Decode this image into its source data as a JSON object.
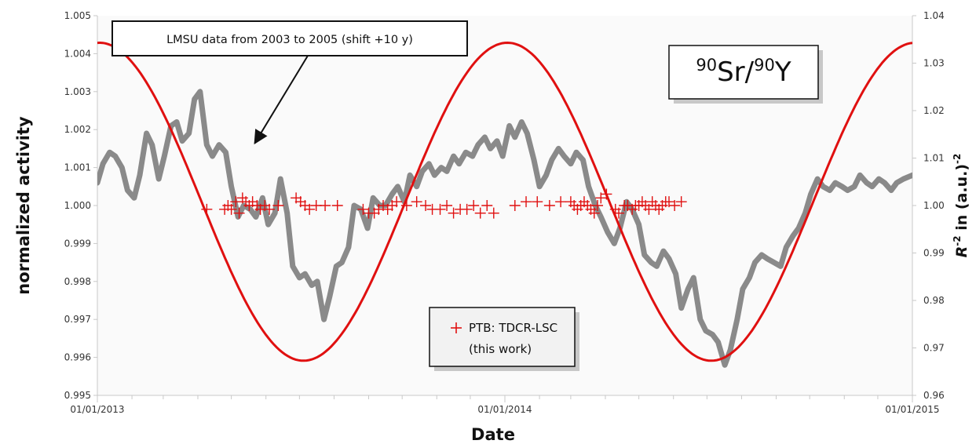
{
  "chart_data": {
    "type": "line",
    "x_axis": {
      "label": "Date",
      "range": [
        "2013-01-01",
        "2015-01-01"
      ],
      "tick_labels": [
        "01/01/2013",
        "01/01/2014",
        "01/01/2015"
      ],
      "minor_ticks": "monthly"
    },
    "y_left": {
      "label": "normalized activity",
      "range": [
        0.995,
        1.005
      ],
      "tick_labels": [
        "1.005",
        "1.004",
        "1.003",
        "1.002",
        "1.001",
        "1.000",
        "0.999",
        "0.998",
        "0.997",
        "0.996",
        "0.995"
      ]
    },
    "y_right": {
      "label_parts": [
        "R",
        "-2",
        " in (a.u.)",
        "-2"
      ],
      "range": [
        0.96,
        1.04
      ],
      "tick_labels": [
        "1.04",
        "1.03",
        "1.02",
        "1.01",
        "1.00",
        "0.99",
        "0.98",
        "0.97",
        "0.96"
      ]
    },
    "grid": false,
    "background": "#fafafa",
    "series": [
      {
        "name": "LMSU data from 2003 to 2005 (shift +10 y)",
        "kind": "line",
        "color": "#8a8a8a",
        "axis": "left",
        "x": [
          "2013-01-01",
          "2013-01-06",
          "2013-01-12",
          "2013-01-17",
          "2013-01-23",
          "2013-01-28",
          "2013-02-03",
          "2013-02-08",
          "2013-02-14",
          "2013-02-19",
          "2013-02-25",
          "2013-03-02",
          "2013-03-08",
          "2013-03-13",
          "2013-03-18",
          "2013-03-24",
          "2013-03-29",
          "2013-04-03",
          "2013-04-09",
          "2013-04-14",
          "2013-04-20",
          "2013-04-26",
          "2013-05-01",
          "2013-05-07",
          "2013-05-12",
          "2013-05-18",
          "2013-05-23",
          "2013-05-29",
          "2013-06-03",
          "2013-06-09",
          "2013-06-14",
          "2013-06-20",
          "2013-06-25",
          "2013-07-01",
          "2013-07-06",
          "2013-07-12",
          "2013-07-17",
          "2013-07-23",
          "2013-07-28",
          "2013-08-03",
          "2013-08-08",
          "2013-08-14",
          "2013-08-19",
          "2013-08-25",
          "2013-08-31",
          "2013-09-05",
          "2013-09-11",
          "2013-09-16",
          "2013-09-22",
          "2013-09-27",
          "2013-10-03",
          "2013-10-08",
          "2013-10-14",
          "2013-10-19",
          "2013-10-25",
          "2013-10-30",
          "2013-11-05",
          "2013-11-10",
          "2013-11-16",
          "2013-11-21",
          "2013-11-27",
          "2013-12-03",
          "2013-12-08",
          "2013-12-14",
          "2013-12-19",
          "2013-12-25",
          "2013-12-30",
          "2014-01-05",
          "2014-01-10",
          "2014-01-16",
          "2014-01-21",
          "2014-01-27",
          "2014-02-01",
          "2014-02-07",
          "2014-02-12",
          "2014-02-18",
          "2014-02-23",
          "2014-03-01",
          "2014-03-06",
          "2014-03-12",
          "2014-03-17",
          "2014-03-23",
          "2014-03-28",
          "2014-04-03",
          "2014-04-09",
          "2014-04-14",
          "2014-04-20",
          "2014-04-25",
          "2014-05-01",
          "2014-05-06",
          "2014-05-12",
          "2014-05-17",
          "2014-05-23",
          "2014-05-28",
          "2014-06-03",
          "2014-06-08",
          "2014-06-14",
          "2014-06-19",
          "2014-06-25",
          "2014-06-30",
          "2014-07-06",
          "2014-07-11",
          "2014-07-17",
          "2014-07-22",
          "2014-07-28",
          "2014-08-02",
          "2014-08-08",
          "2014-08-13",
          "2014-08-19",
          "2014-08-24",
          "2014-08-30",
          "2014-09-05",
          "2014-09-10",
          "2014-09-16",
          "2014-09-21",
          "2014-09-27",
          "2014-10-02",
          "2014-10-08",
          "2014-10-13",
          "2014-10-19",
          "2014-10-24",
          "2014-10-30",
          "2014-11-04",
          "2014-11-10",
          "2014-11-15",
          "2014-11-21",
          "2014-11-26",
          "2014-12-02",
          "2014-12-07",
          "2014-12-13",
          "2014-12-18",
          "2014-12-24",
          "2015-01-01"
        ],
        "values": [
          1.0006,
          1.0011,
          1.0014,
          1.0013,
          1.001,
          1.0004,
          1.0002,
          1.0008,
          1.0019,
          1.0016,
          1.0007,
          1.0013,
          1.0021,
          1.0022,
          1.0017,
          1.0019,
          1.0028,
          1.003,
          1.0016,
          1.0013,
          1.0016,
          1.0014,
          1.0005,
          0.9997,
          1.0,
          0.9999,
          0.9997,
          1.0002,
          0.9995,
          0.9998,
          1.0007,
          0.9998,
          0.9984,
          0.9981,
          0.9982,
          0.9979,
          0.998,
          0.997,
          0.9976,
          0.9984,
          0.9985,
          0.9989,
          1.0,
          0.9999,
          0.9994,
          1.0002,
          1.0,
          1.0,
          1.0003,
          1.0005,
          1.0001,
          1.0008,
          1.0005,
          1.0009,
          1.0011,
          1.0008,
          1.001,
          1.0009,
          1.0013,
          1.0011,
          1.0014,
          1.0013,
          1.0016,
          1.0018,
          1.0015,
          1.0017,
          1.0013,
          1.0021,
          1.0018,
          1.0022,
          1.0019,
          1.0012,
          1.0005,
          1.0008,
          1.0012,
          1.0015,
          1.0013,
          1.0011,
          1.0014,
          1.0012,
          1.0005,
          1.0,
          0.9997,
          0.9993,
          0.999,
          0.9994,
          1.0001,
          0.9999,
          0.9995,
          0.9987,
          0.9985,
          0.9984,
          0.9988,
          0.9986,
          0.9982,
          0.9973,
          0.9978,
          0.9981,
          0.997,
          0.9967,
          0.9966,
          0.9964,
          0.9958,
          0.9962,
          0.997,
          0.9978,
          0.9981,
          0.9985,
          0.9987,
          0.9986,
          0.9985,
          0.9984,
          0.9989,
          0.9992,
          0.9994,
          0.9998,
          1.0003,
          1.0007,
          1.0005,
          1.0004,
          1.0006,
          1.0005,
          1.0004,
          1.0005,
          1.0008,
          1.0006,
          1.0005,
          1.0007,
          1.0006,
          1.0004,
          1.0006,
          1.0007,
          1.0008
        ]
      },
      {
        "name": "",
        "kind": "line",
        "color": "#e01010",
        "axis": "right",
        "curve": "cosine",
        "peak_dates": [
          "2013-01-03",
          "2014-01-03",
          "2015-01-03"
        ],
        "max": 1.0343,
        "min": 0.9673,
        "x": [
          "2013-01-01",
          "2013-07-05",
          "2014-01-01",
          "2014-07-05",
          "2015-01-01"
        ],
        "values": [
          1.0343,
          0.9673,
          1.0343,
          0.9673,
          1.0343
        ]
      },
      {
        "name": "PTB: TDCR-LSC (this work)",
        "kind": "scatter",
        "marker": "+",
        "color": "#e01010",
        "axis": "left",
        "x": [
          "2013-04-09",
          "2013-04-25",
          "2013-04-28",
          "2013-05-01",
          "2013-05-05",
          "2013-05-08",
          "2013-05-11",
          "2013-05-14",
          "2013-05-17",
          "2013-05-20",
          "2013-05-24",
          "2013-05-27",
          "2013-05-31",
          "2013-06-04",
          "2013-06-12",
          "2013-06-28",
          "2013-07-02",
          "2013-07-06",
          "2013-07-10",
          "2013-07-16",
          "2013-07-24",
          "2013-08-04",
          "2013-08-27",
          "2013-09-01",
          "2013-09-06",
          "2013-09-10",
          "2013-09-14",
          "2013-09-18",
          "2013-09-22",
          "2013-09-26",
          "2013-10-05",
          "2013-10-14",
          "2013-10-22",
          "2013-10-28",
          "2013-11-04",
          "2013-11-10",
          "2013-11-16",
          "2013-11-22",
          "2013-11-28",
          "2013-12-04",
          "2013-12-10",
          "2013-12-16",
          "2013-12-22",
          "2014-01-10",
          "2014-01-20",
          "2014-01-30",
          "2014-02-10",
          "2014-02-20",
          "2014-03-01",
          "2014-03-04",
          "2014-03-07",
          "2014-03-10",
          "2014-03-13",
          "2014-03-16",
          "2014-03-19",
          "2014-03-22",
          "2014-03-25",
          "2014-03-28",
          "2014-04-02",
          "2014-04-10",
          "2014-04-13",
          "2014-04-18",
          "2014-04-21",
          "2014-04-25",
          "2014-04-28",
          "2014-05-01",
          "2014-05-04",
          "2014-05-07",
          "2014-05-10",
          "2014-05-13",
          "2014-05-16",
          "2014-05-19",
          "2014-05-22",
          "2014-05-25",
          "2014-05-28",
          "2014-06-02",
          "2014-06-08"
        ],
        "values": [
          0.9999,
          0.9999,
          1.0,
          0.9999,
          1.0001,
          0.9998,
          1.0002,
          1.0001,
          1.0,
          1.0001,
          1.0,
          0.9999,
          1.0,
          0.9999,
          1.0,
          1.0002,
          1.0001,
          1.0,
          0.9999,
          1.0,
          1.0,
          1.0,
          0.9999,
          0.9998,
          0.9998,
          0.9999,
          1.0,
          0.9999,
          1.0,
          1.0001,
          1.0,
          1.0001,
          1.0,
          0.9999,
          0.9999,
          1.0,
          0.9998,
          0.9999,
          0.9999,
          1.0,
          0.9998,
          1.0,
          0.9998,
          1.0,
          1.0001,
          1.0001,
          1.0,
          1.0001,
          1.0001,
          1.0,
          0.9999,
          1.0,
          1.0001,
          1.0,
          0.9999,
          0.9998,
          1.0,
          1.0002,
          1.0003,
          0.9999,
          0.9998,
          1.0,
          1.0,
          0.9999,
          1.0,
          1.0,
          1.0001,
          1.0,
          0.9999,
          1.0001,
          1.0,
          0.9999,
          1.0,
          1.0001,
          1.0001,
          1.0,
          1.0001
        ]
      }
    ],
    "annotations": {
      "callout": "LMSU data from 2003 to 2005 (shift +10 y)",
      "callout_target_date": "2013-05-22",
      "callout_target_value": 1.0016,
      "nuclide_parts": [
        "90",
        "Sr/",
        "90",
        "Y"
      ],
      "legend_line1": "PTB: TDCR-LSC",
      "legend_line2": "(this work)"
    }
  }
}
